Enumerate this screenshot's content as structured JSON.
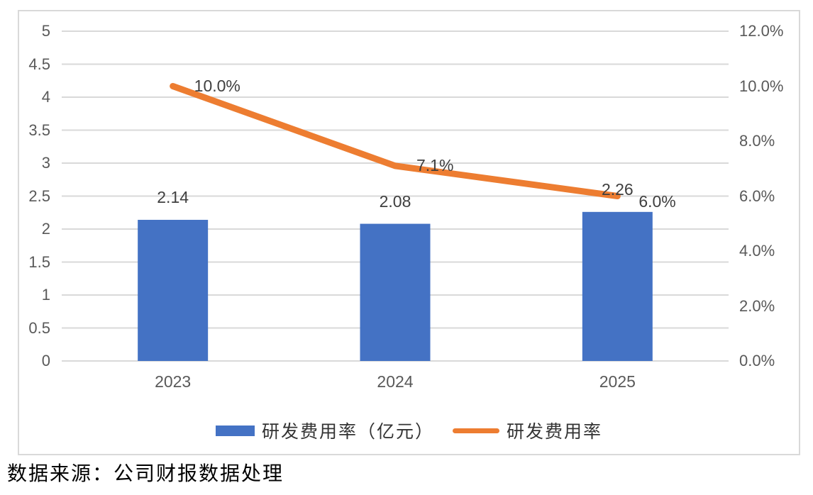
{
  "chart_data": {
    "type": "combo-bar-line",
    "categories": [
      "2023",
      "2024",
      "2025"
    ],
    "series": [
      {
        "name": "研发费用率（亿元）",
        "type": "bar",
        "axis": "left",
        "color": "#4472C4",
        "values": [
          2.14,
          2.08,
          2.26
        ],
        "data_labels": [
          "2.14",
          "2.08",
          "2.26"
        ]
      },
      {
        "name": "研发费用率",
        "type": "line",
        "axis": "right",
        "color": "#ED7D31",
        "values": [
          0.1,
          0.071,
          0.06
        ],
        "data_labels": [
          "10.0%",
          "7.1%",
          "6.0%"
        ]
      }
    ],
    "left_axis": {
      "min": 0,
      "max": 5,
      "step": 0.5,
      "ticks": [
        "5",
        "4.5",
        "4",
        "3.5",
        "3",
        "2.5",
        "2",
        "1.5",
        "1",
        "0.5",
        "0"
      ]
    },
    "right_axis": {
      "min": 0,
      "max": 0.12,
      "step": 0.02,
      "ticks": [
        "12.0%",
        "10.0%",
        "8.0%",
        "6.0%",
        "4.0%",
        "2.0%",
        "0.0%"
      ]
    },
    "grid": true,
    "legend_position": "bottom",
    "title": ""
  },
  "caption": "数据来源：公司财报数据处理",
  "colors": {
    "bar": "#4472C4",
    "line": "#ED7D31",
    "grid": "#D9D9D9",
    "frame_border": "#D9D9D9",
    "axis_text": "#595959",
    "label_text": "#3F3F3F",
    "background": "#FFFFFF"
  }
}
